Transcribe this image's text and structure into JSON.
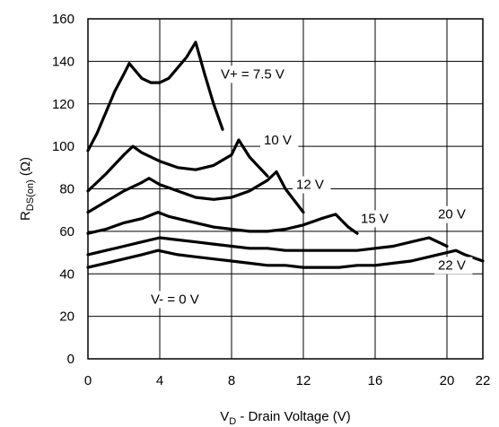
{
  "chart_data": {
    "type": "line",
    "xlabel": {
      "main": "V",
      "sub": "D",
      "rest": " - Drain Voltage (V)"
    },
    "ylabel": {
      "main": "R",
      "sub": "DS(on)",
      "rest": " (Ω)"
    },
    "xlim": [
      0,
      22
    ],
    "ylim": [
      0,
      160
    ],
    "xticks": [
      0,
      4,
      8,
      12,
      16,
      20,
      22
    ],
    "yticks": [
      0,
      20,
      40,
      60,
      80,
      100,
      120,
      140,
      160
    ],
    "grid": true,
    "line_color": "#000000",
    "series": [
      {
        "name": "V+ = 7.5 V",
        "label_at": [
          7.4,
          132
        ],
        "x": [
          0,
          0.5,
          1.0,
          1.5,
          2.0,
          2.3,
          2.6,
          3.0,
          3.5,
          4.0,
          4.5,
          5.0,
          5.5,
          6.0,
          6.5,
          7.0,
          7.5
        ],
        "y": [
          98,
          106,
          116,
          126,
          134,
          139,
          136,
          132,
          130,
          130,
          132,
          137,
          142,
          149,
          134,
          120,
          108
        ]
      },
      {
        "name": "10 V",
        "label_at": [
          9.8,
          101
        ],
        "x": [
          0,
          1.0,
          2.0,
          2.5,
          3.0,
          4.0,
          5.0,
          6.0,
          7.0,
          8.0,
          8.4,
          9.0,
          10.0
        ],
        "y": [
          79,
          87,
          96,
          100,
          97,
          93,
          90,
          89,
          91,
          96,
          103,
          95,
          86
        ]
      },
      {
        "name": "12 V",
        "label_at": [
          11.6,
          80
        ],
        "x": [
          0,
          1.0,
          2.0,
          3.0,
          3.4,
          4.0,
          5.0,
          6.0,
          7.0,
          8.0,
          9.0,
          10.0,
          10.5,
          11.0,
          12.0
        ],
        "y": [
          69,
          74,
          79,
          83,
          85,
          82,
          79,
          76,
          75,
          76,
          79,
          84,
          88,
          80,
          69
        ]
      },
      {
        "name": "15 V",
        "label_at": [
          15.2,
          64
        ],
        "x": [
          0,
          1.0,
          2.0,
          3.0,
          3.9,
          4.5,
          5.0,
          6.0,
          7.0,
          8.0,
          9.0,
          10.0,
          11.0,
          12.0,
          13.0,
          13.8,
          14.5,
          15.0
        ],
        "y": [
          59,
          61,
          64,
          66,
          69,
          67,
          66,
          64,
          62,
          61,
          60,
          60,
          61,
          63,
          66,
          68,
          62,
          59
        ]
      },
      {
        "name": "20 V",
        "label_at": [
          19.5,
          66
        ],
        "x": [
          0,
          1.0,
          2.0,
          3.0,
          4.0,
          5.0,
          6.0,
          7.0,
          8.0,
          9.0,
          10.0,
          11.0,
          12.0,
          13.0,
          14.0,
          15.0,
          16.0,
          17.0,
          18.0,
          19.0,
          19.5,
          20.0
        ],
        "y": [
          49,
          51,
          53,
          55,
          57,
          56,
          55,
          54,
          53,
          52,
          52,
          51,
          51,
          51,
          51,
          51,
          52,
          53,
          55,
          57,
          55,
          53
        ]
      },
      {
        "name": "22 V",
        "label_at": [
          19.5,
          42
        ],
        "x": [
          0,
          1.0,
          2.0,
          3.0,
          3.9,
          5.0,
          6.0,
          7.0,
          8.0,
          9.0,
          10.0,
          11.0,
          12.0,
          13.0,
          14.0,
          15.0,
          16.0,
          17.0,
          18.0,
          19.0,
          20.0,
          20.5,
          21.0,
          22.0
        ],
        "y": [
          43,
          45,
          47,
          49,
          51,
          49,
          48,
          47,
          46,
          45,
          44,
          44,
          43,
          43,
          43,
          44,
          44,
          45,
          46,
          48,
          50,
          51,
          49,
          46
        ]
      }
    ],
    "annotations": [
      {
        "text": "V- = 0 V",
        "at": [
          3.5,
          26
        ]
      }
    ]
  }
}
